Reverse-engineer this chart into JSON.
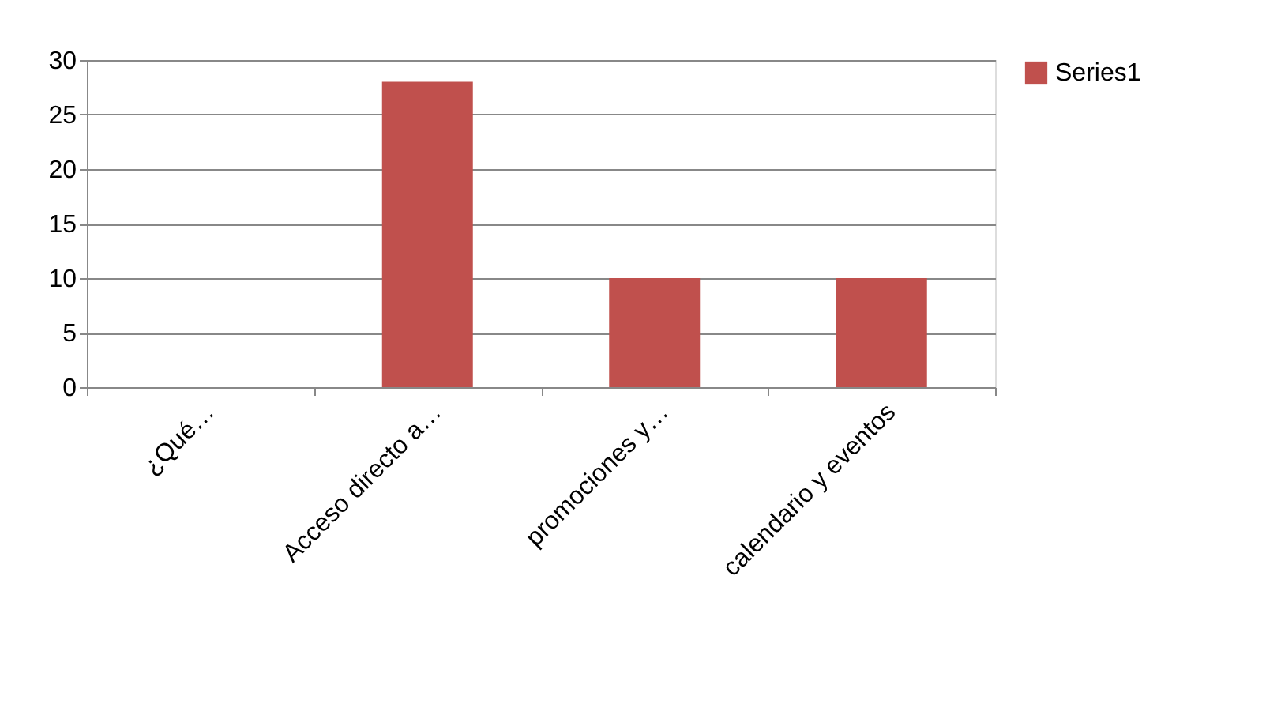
{
  "chart_data": {
    "type": "bar",
    "categories": [
      "¿Qué…",
      "Acceso directo a…",
      "promociones y…",
      "calendario y eventos"
    ],
    "series": [
      {
        "name": "Series1",
        "color": "#c0504d",
        "values": [
          0,
          28,
          10,
          10
        ]
      }
    ],
    "ylim": [
      0,
      30
    ],
    "yticks": [
      0,
      5,
      10,
      15,
      20,
      25,
      30
    ],
    "grid": "y",
    "legend": "right"
  }
}
